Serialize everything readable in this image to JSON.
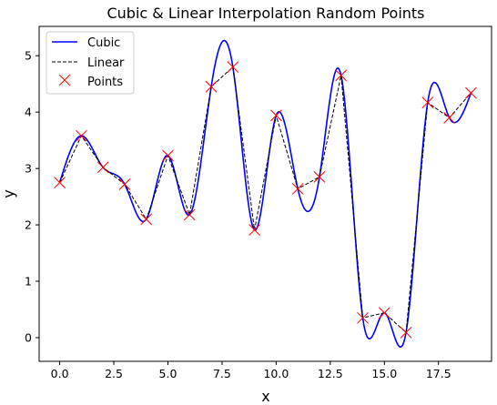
{
  "chart_data": {
    "type": "line",
    "title": "Cubic & Linear Interpolation Random Points",
    "xlabel": "x",
    "ylabel": "y",
    "xlim": [
      -0.95,
      19.95
    ],
    "ylim": [
      -0.42,
      5.52
    ],
    "xticks": [
      0,
      2.5,
      5,
      7.5,
      10,
      12.5,
      15,
      17.5
    ],
    "xtick_labels": [
      "0.0",
      "2.5",
      "5.0",
      "7.5",
      "10.0",
      "12.5",
      "15.0",
      "17.5"
    ],
    "yticks": [
      0,
      1,
      2,
      3,
      4,
      5
    ],
    "ytick_labels": [
      "0",
      "1",
      "2",
      "3",
      "4",
      "5"
    ],
    "grid": false,
    "legend_position": "top-left",
    "x": [
      0,
      1,
      2,
      3,
      4,
      5,
      6,
      7,
      8,
      9,
      10,
      11,
      12,
      13,
      14,
      15,
      16,
      17,
      18,
      19
    ],
    "y": [
      2.75,
      3.58,
      3.02,
      2.72,
      2.1,
      3.23,
      2.18,
      4.45,
      4.8,
      1.91,
      3.94,
      2.64,
      2.85,
      4.65,
      0.35,
      0.44,
      0.09,
      4.17,
      3.9,
      4.34
    ],
    "series": [
      {
        "name": "Cubic",
        "style": "solid line",
        "color": "#0000ff"
      },
      {
        "name": "Linear",
        "style": "dashed line",
        "color": "#000000"
      },
      {
        "name": "Points",
        "style": "x markers",
        "color": "#ff0000"
      }
    ]
  }
}
